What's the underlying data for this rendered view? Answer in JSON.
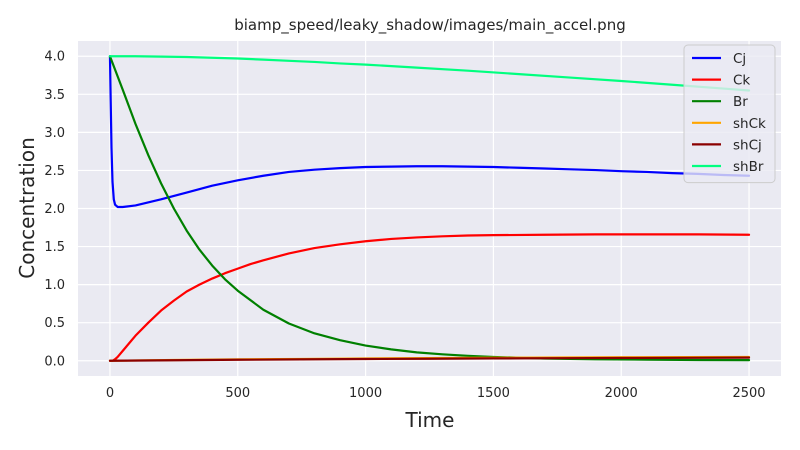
{
  "chart_data": {
    "type": "line",
    "title": "biamp_speed/leaky_shadow/images/main_accel.png",
    "xlabel": "Time",
    "ylabel": "Concentration",
    "xlim": [
      -125,
      2625
    ],
    "ylim": [
      -0.2,
      4.2
    ],
    "xticks": [
      0,
      500,
      1000,
      1500,
      2000,
      2500
    ],
    "xtick_labels": [
      "0",
      "500",
      "1000",
      "1500",
      "2000",
      "2500"
    ],
    "yticks": [
      0.0,
      0.5,
      1.0,
      1.5,
      2.0,
      2.5,
      3.0,
      3.5,
      4.0
    ],
    "ytick_labels": [
      "0.0",
      "0.5",
      "1.0",
      "1.5",
      "2.0",
      "2.5",
      "3.0",
      "3.5",
      "4.0"
    ],
    "grid": true,
    "legend_position": "top-right",
    "series": [
      {
        "name": "Cj",
        "color": "#0000ff",
        "x": [
          0,
          3,
          6,
          10,
          15,
          20,
          30,
          50,
          100,
          200,
          300,
          400,
          500,
          600,
          700,
          800,
          900,
          1000,
          1100,
          1200,
          1300,
          1400,
          1500,
          1600,
          1700,
          1800,
          1900,
          2000,
          2100,
          2200,
          2300,
          2400,
          2500
        ],
        "y": [
          4.0,
          3.4,
          2.8,
          2.35,
          2.12,
          2.05,
          2.02,
          2.02,
          2.04,
          2.12,
          2.21,
          2.3,
          2.37,
          2.43,
          2.48,
          2.51,
          2.53,
          2.545,
          2.55,
          2.555,
          2.555,
          2.55,
          2.545,
          2.535,
          2.525,
          2.515,
          2.505,
          2.49,
          2.48,
          2.465,
          2.455,
          2.44,
          2.43
        ]
      },
      {
        "name": "Ck",
        "color": "#ff0000",
        "x": [
          0,
          10,
          20,
          30,
          50,
          75,
          100,
          150,
          200,
          250,
          300,
          350,
          400,
          450,
          500,
          550,
          600,
          700,
          800,
          900,
          1000,
          1100,
          1200,
          1300,
          1400,
          1500,
          1700,
          1900,
          2100,
          2300,
          2500
        ],
        "y": [
          0.0,
          0.0,
          0.02,
          0.05,
          0.13,
          0.23,
          0.33,
          0.5,
          0.66,
          0.79,
          0.91,
          1.0,
          1.08,
          1.15,
          1.21,
          1.27,
          1.32,
          1.41,
          1.48,
          1.53,
          1.57,
          1.6,
          1.62,
          1.635,
          1.645,
          1.65,
          1.655,
          1.66,
          1.66,
          1.66,
          1.655
        ]
      },
      {
        "name": "Br",
        "color": "#008000",
        "x": [
          0,
          50,
          100,
          150,
          200,
          250,
          300,
          350,
          400,
          450,
          500,
          600,
          700,
          800,
          900,
          1000,
          1100,
          1200,
          1300,
          1400,
          1500,
          1700,
          1900,
          2100,
          2300,
          2500
        ],
        "y": [
          4.0,
          3.56,
          3.11,
          2.7,
          2.33,
          2.0,
          1.71,
          1.46,
          1.25,
          1.07,
          0.92,
          0.67,
          0.49,
          0.36,
          0.27,
          0.2,
          0.15,
          0.11,
          0.085,
          0.065,
          0.05,
          0.03,
          0.02,
          0.015,
          0.01,
          0.008
        ]
      },
      {
        "name": "shCk",
        "color": "#ffa500",
        "x": [
          0,
          250,
          500,
          750,
          1000,
          1250,
          1500,
          1750,
          2000,
          2250,
          2500
        ],
        "y": [
          0.0,
          0.01,
          0.018,
          0.024,
          0.03,
          0.035,
          0.04,
          0.043,
          0.046,
          0.048,
          0.05
        ]
      },
      {
        "name": "shCj",
        "color": "#8b0000",
        "x": [
          0,
          250,
          500,
          750,
          1000,
          1250,
          1500,
          1750,
          2000,
          2250,
          2500
        ],
        "y": [
          0.0,
          0.007,
          0.013,
          0.018,
          0.023,
          0.027,
          0.031,
          0.034,
          0.037,
          0.039,
          0.041
        ]
      },
      {
        "name": "shBr",
        "color": "#00ff7f",
        "x": [
          0,
          100,
          200,
          300,
          400,
          500,
          600,
          700,
          800,
          900,
          1000,
          1200,
          1400,
          1600,
          1800,
          2000,
          2200,
          2400,
          2500
        ],
        "y": [
          4.0,
          4.0,
          3.995,
          3.99,
          3.98,
          3.97,
          3.955,
          3.94,
          3.925,
          3.905,
          3.89,
          3.85,
          3.81,
          3.765,
          3.72,
          3.675,
          3.625,
          3.575,
          3.55
        ]
      }
    ]
  }
}
